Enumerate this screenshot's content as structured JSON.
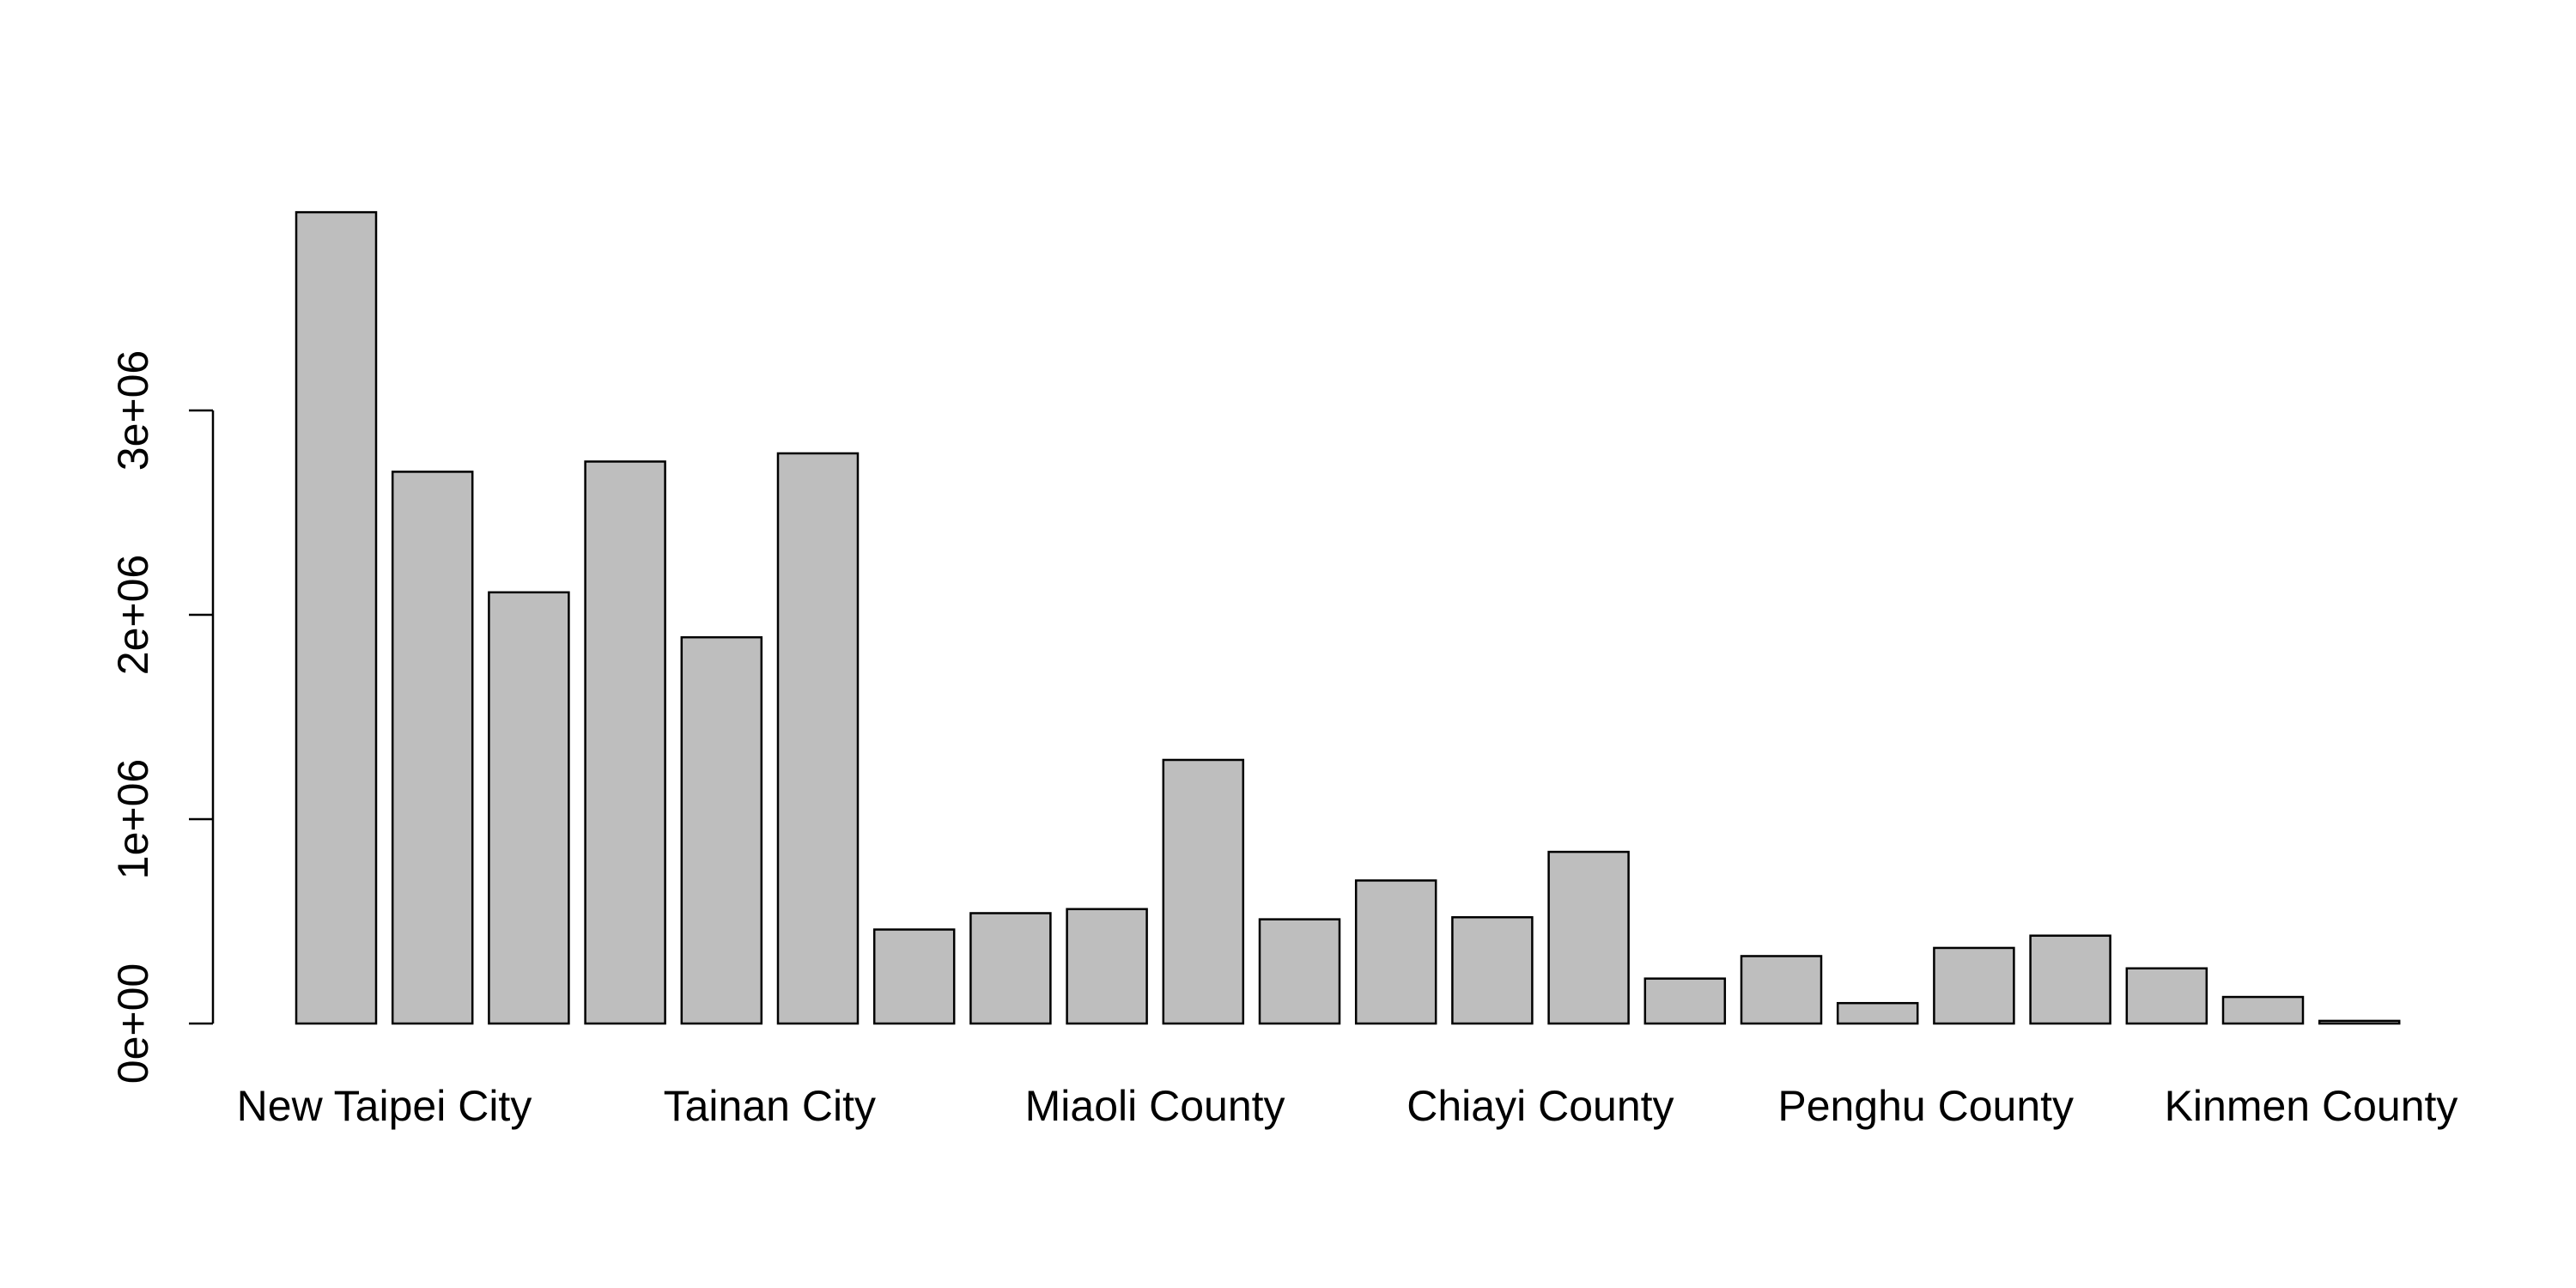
{
  "chart_data": {
    "type": "bar",
    "categories": [
      "New Taipei City",
      "",
      "",
      "",
      "Tainan City",
      "",
      "",
      "",
      "Miaoli County",
      "",
      "",
      "",
      "Chiayi County",
      "",
      "",
      "",
      "Penghu County",
      "",
      "",
      "",
      "Kinmen County",
      ""
    ],
    "values": [
      3970000,
      2700000,
      2110000,
      2750000,
      1890000,
      2790000,
      460000,
      540000,
      560000,
      1290000,
      510000,
      700000,
      520000,
      840000,
      220000,
      330000,
      100000,
      370000,
      430000,
      270000,
      130000,
      13000
    ],
    "yticks": [
      0,
      1000000,
      2000000,
      3000000
    ],
    "ytick_labels": [
      "0e+00",
      "1e+06",
      "2e+06",
      "3e+06"
    ],
    "ylim": [
      0,
      4100000
    ],
    "bar_fill": "#bebebe",
    "bar_stroke": "#000000",
    "title": "",
    "xlabel": "",
    "ylabel": "",
    "grid": false,
    "legend": false
  }
}
